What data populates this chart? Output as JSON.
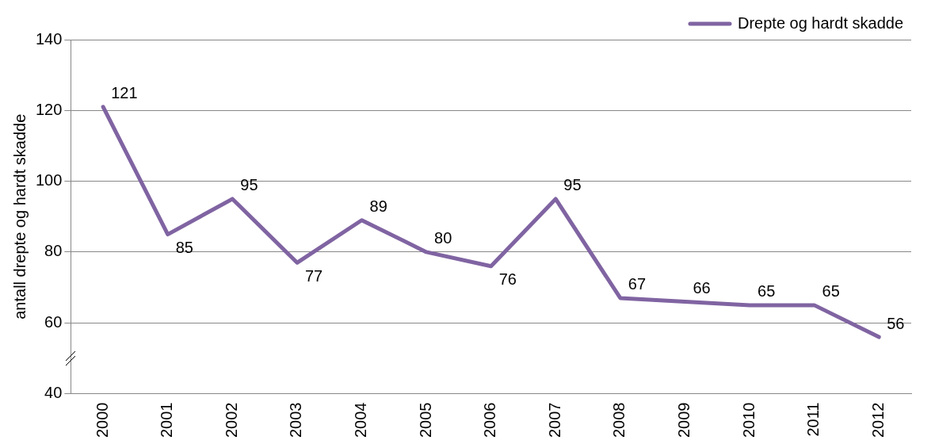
{
  "chart_data": {
    "type": "line",
    "ylabel": "antall drepte og hardt skadde",
    "categories": [
      "2000",
      "2001",
      "2002",
      "2003",
      "2004",
      "2005",
      "2006",
      "2007",
      "2008",
      "2009",
      "2010",
      "2011",
      "2012"
    ],
    "series": [
      {
        "name": "Drepte og hardt skadde",
        "color": "#8064a2",
        "values": [
          121,
          85,
          95,
          77,
          89,
          80,
          76,
          95,
          67,
          66,
          65,
          65,
          56
        ]
      }
    ],
    "ylim": [
      40,
      140
    ],
    "yticks": [
      40,
      60,
      80,
      100,
      120,
      140
    ],
    "grid": "y",
    "legend": "top right",
    "marker": "none",
    "line_style": "solid",
    "data_labels": true
  }
}
